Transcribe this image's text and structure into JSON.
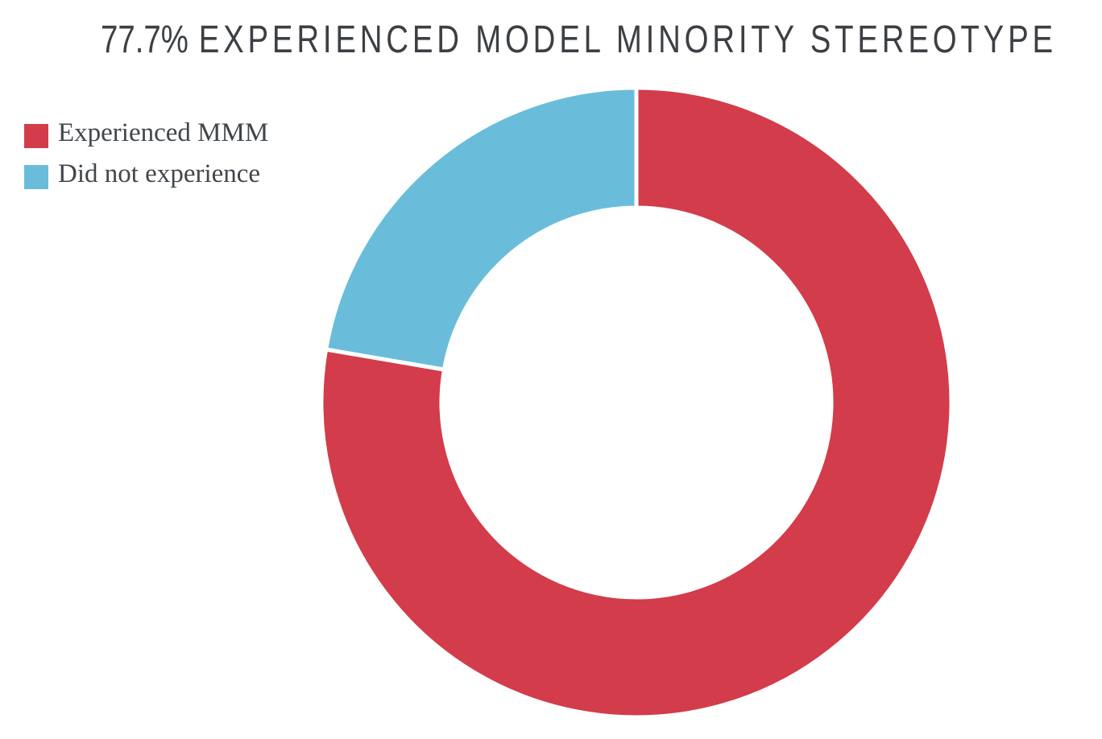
{
  "title": {
    "percent": "77.7%",
    "caps": "EXPERIENCED MODEL MINORITY STEREOTYPE",
    "color": "#3c4044"
  },
  "legend": {
    "position": "top-left",
    "items": [
      {
        "label": "Experienced MMM",
        "color": "#d33c4a"
      },
      {
        "label": "Did not experience",
        "color": "#69bdda"
      }
    ],
    "text_color": "#41464b"
  },
  "chart_data": {
    "type": "pie",
    "subtype": "donut",
    "title": "77.7% EXPERIENCED MODEL MINORITY STEREOTYPE",
    "labels": [
      "Experienced MMM",
      "Did not experience"
    ],
    "values": [
      77.7,
      22.3
    ],
    "unit": "percent",
    "colors": [
      "#d33c4a",
      "#69bdda"
    ],
    "start_angle_deg": 0,
    "direction": "clockwise",
    "inner_radius_ratio": 0.62,
    "border_color": "#ffffff",
    "border_width": 5,
    "legend_position": "top-left",
    "grid": "off"
  }
}
